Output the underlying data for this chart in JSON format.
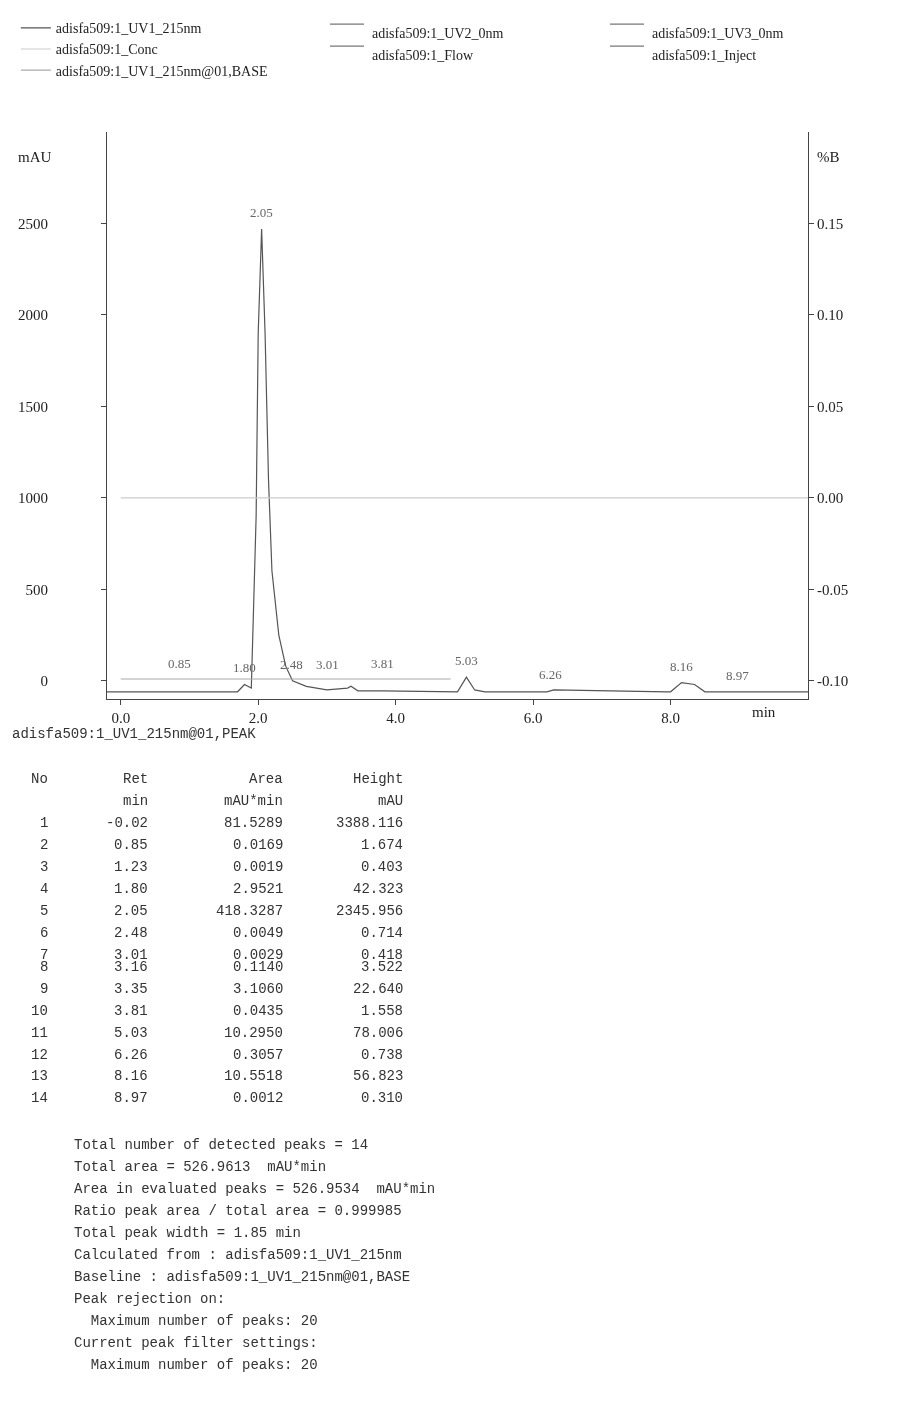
{
  "chart_data": {
    "type": "line",
    "x": [
      -0.2,
      1.7,
      1.8,
      1.9,
      1.97,
      2.0,
      2.05,
      2.1,
      2.15,
      2.2,
      2.3,
      2.4,
      2.5,
      2.7,
      3.0,
      3.3,
      3.35,
      3.45,
      3.8,
      4.9,
      5.03,
      5.15,
      5.3,
      6.2,
      6.3,
      7.95,
      8.0,
      8.16,
      8.35,
      8.5,
      8.97,
      10.0
    ],
    "series": [
      {
        "name": "adisfa509:1_UV1_215nm",
        "color": "#555555",
        "values": [
          -60,
          -60,
          -20,
          -40,
          900,
          1900,
          2470,
          1900,
          1100,
          600,
          250,
          80,
          0,
          -30,
          -50,
          -40,
          -30,
          -55,
          -55,
          -60,
          20,
          -50,
          -60,
          -60,
          -50,
          -60,
          -60,
          -10,
          -20,
          -60,
          -60,
          -60
        ]
      },
      {
        "name": "adisfa509:1_Conc",
        "color": "#cccccc",
        "axis": "y2",
        "x": [
          0.0,
          10.0
        ],
        "values": [
          0.0,
          0.0
        ]
      },
      {
        "name": "adisfa509:1_UV1_215nm@01,BASE",
        "color": "#aaaaaa",
        "x": [
          0.0,
          4.8
        ],
        "values": [
          10,
          10
        ]
      }
    ],
    "xlabel": "min",
    "ylabel": "mAU",
    "y2label": "%B",
    "xlim": [
      -0.2,
      10.0
    ],
    "xticks": [
      {
        "value": 0,
        "label": "0.0"
      },
      {
        "value": 2,
        "label": "2.0"
      },
      {
        "value": 4,
        "label": "4.0"
      },
      {
        "value": 6,
        "label": "6.0"
      },
      {
        "value": 8,
        "label": "8.0"
      }
    ],
    "ylim": [
      -100,
      3000
    ],
    "yticks": [
      0,
      500,
      1000,
      1500,
      2000,
      2500
    ],
    "y2lim": [
      -0.11,
      0.2
    ],
    "y2ticks": [
      {
        "value": -0.1,
        "label": "-0.10"
      },
      {
        "value": -0.05,
        "label": "-0.05"
      },
      {
        "value": 0,
        "label": "0.00"
      },
      {
        "value": 0.05,
        "label": "0.05"
      },
      {
        "value": 0.1,
        "label": "0.10"
      },
      {
        "value": 0.15,
        "label": "0.15"
      }
    ],
    "legend": "top",
    "marker": "none",
    "line_style": "solid",
    "annotations": [
      {
        "text": "0.85",
        "x": 0.85,
        "y": 2
      },
      {
        "text": "1.80",
        "x": 1.8,
        "y": -20
      },
      {
        "text": "2.05",
        "x": 2.05,
        "y": 2470
      },
      {
        "text": "2.48",
        "x": 2.48,
        "y": 1
      },
      {
        "text": "3.01",
        "x": 3.01,
        "y": 0
      },
      {
        "text": "3.81",
        "x": 3.81,
        "y": 2
      },
      {
        "text": "5.03",
        "x": 5.03,
        "y": 20
      },
      {
        "text": "6.26",
        "x": 6.26,
        "y": -55
      },
      {
        "text": "8.16",
        "x": 8.16,
        "y": -10
      },
      {
        "text": "8.97",
        "x": 8.97,
        "y": -60
      },
      "adisfa509:1_UV2_0nm",
      "adisfa509:1_UV3_0nm",
      "adisfa509:1_Flow",
      "adisfa509:1_Inject",
      "adisfa509:1_UV1_215nm@01,PEAK",
      "No",
      "Ret",
      "Area",
      "Height",
      "min",
      "mAU*min",
      "mAU",
      "1",
      "-0.02",
      "81.5289",
      "3388.116",
      "2",
      "0.85",
      "0.0169",
      "1.674",
      "3",
      "1.23",
      "0.0019",
      "0.403",
      "4",
      "1.80",
      "2.9521",
      "42.323",
      "5",
      "2.05",
      "418.3287",
      "2345.956",
      "6",
      "2.48",
      "0.0049",
      "0.714",
      "7",
      "3.01",
      "0.0029",
      "0.418",
      "8",
      "3.16",
      "0.1140",
      "3.522",
      "9",
      "3.35",
      "3.1060",
      "22.640",
      "10",
      "3.81",
      "0.0435",
      "1.558",
      "11",
      "5.03",
      "10.2950",
      "78.006",
      "12",
      "6.26",
      "0.3057",
      "0.738",
      "13",
      "8.16",
      "10.5518",
      "56.823",
      "14",
      "8.97",
      "0.0012",
      "0.310",
      "Total number of detected peaks = 14",
      "Total area = 526.9613  mAU*min",
      "Area in evaluated peaks = 526.9534  mAU*min",
      "Ratio peak area / total area = 0.999985",
      "Total peak width = 1.85 min",
      "Calculated from : adisfa509:1_UV1_215nm",
      "Baseline : adisfa509:1_UV1_215nm@01,BASE",
      "Peak rejection on:",
      "  Maximum number of peaks: 20",
      "Current peak filter settings:",
      "  Maximum number of peaks: 20"
    ]
  }
}
